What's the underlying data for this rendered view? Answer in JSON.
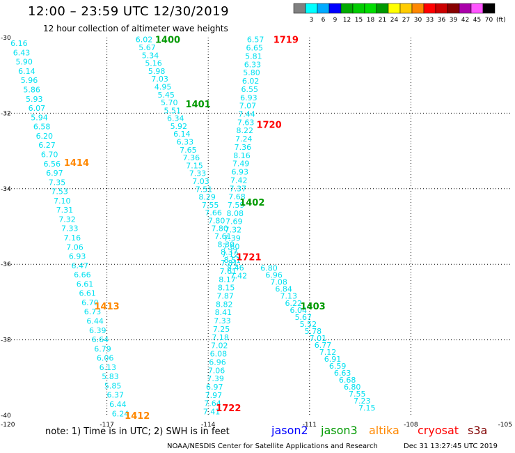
{
  "header": {
    "title": "12:00 – 23:59 UTC 12/30/2019",
    "subtitle": "12 hour collection of altimeter wave heights"
  },
  "color_scale": {
    "unit": "(ft)",
    "bins": [
      {
        "label": "",
        "color": "#808080"
      },
      {
        "label": "3",
        "color": "#00ffff"
      },
      {
        "label": "6",
        "color": "#00aaff"
      },
      {
        "label": "9",
        "color": "#0000ff"
      },
      {
        "label": "12",
        "color": "#00aa00"
      },
      {
        "label": "15",
        "color": "#00cc00"
      },
      {
        "label": "18",
        "color": "#00dd00"
      },
      {
        "label": "21",
        "color": "#009900"
      },
      {
        "label": "24",
        "color": "#ffff00"
      },
      {
        "label": "27",
        "color": "#ffcc00"
      },
      {
        "label": "30",
        "color": "#ff8800"
      },
      {
        "label": "33",
        "color": "#ff0000"
      },
      {
        "label": "36",
        "color": "#cc0000"
      },
      {
        "label": "39",
        "color": "#880000"
      },
      {
        "label": "42",
        "color": "#aa00aa"
      },
      {
        "label": "45",
        "color": "#ff55ff"
      },
      {
        "label": "70",
        "color": "#000000"
      }
    ]
  },
  "footer": {
    "note": "note:  1) Time is in UTC; 2) SWH is in feet",
    "satellites": [
      {
        "name": "jason2",
        "color": "#0000ff"
      },
      {
        "name": "jason3",
        "color": "#009900"
      },
      {
        "name": "altika",
        "color": "#ff8800"
      },
      {
        "name": "cryosat",
        "color": "#ff0000"
      },
      {
        "name": "s3a",
        "color": "#800000"
      }
    ],
    "credit": "NOAA/NESDIS Center for Satellite Applications and Research",
    "timestamp": "Dec 31 13:27:45 UTC 2019"
  },
  "chart_data": {
    "type": "scatter",
    "xlim": [
      -120,
      -105
    ],
    "ylim": [
      -40,
      -30
    ],
    "x_ticks": [
      "-120",
      "-117",
      "-114",
      "-111",
      "-108",
      "-105"
    ],
    "y_ticks": [
      "-30",
      "-32",
      "-34",
      "-36",
      "-38",
      "-40"
    ],
    "grid": true,
    "point_color": "#00e0f0",
    "tracks": [
      {
        "id": "track-left",
        "lon_start": -119.6,
        "lat_start": -30.15,
        "lon_end": -116.6,
        "lat_end": -39.95,
        "values": [
          "6.16",
          "6.43",
          "5.90",
          "6.14",
          "5.96",
          "5.86",
          "5.93",
          "6.07",
          "5.94",
          "6.58",
          "6.20",
          "6.27",
          "6.70",
          "6.56",
          "6.97",
          "7.35",
          "7.53",
          "7.10",
          "7.31",
          "7.32",
          "7.33",
          "7.16",
          "7.06",
          "6.93",
          "6.47",
          "6.66",
          "6.61",
          "6.61",
          "6.70",
          "6.73",
          "6.44",
          "6.39",
          "6.64",
          "6.79",
          "6.06",
          "6.13",
          "5.83",
          "5.85",
          "6.37",
          "6.44",
          "6.24"
        ]
      },
      {
        "id": "track-1400",
        "lon_start": -115.9,
        "lat_start": -30.05,
        "lon_end": -113.1,
        "lat_end": -36.3,
        "values": [
          "6.02",
          "5.67",
          "5.34",
          "5.16",
          "5.98",
          "7.03",
          "4.95",
          "5.45",
          "5.70",
          "5.51",
          "6.34",
          "5.92",
          "6.14",
          "6.33",
          "7.65",
          "7.36",
          "7.15",
          "7.33",
          "7.03",
          "7.51",
          "8.29",
          "7.55",
          "7.66",
          "7.80",
          "7.80",
          "7.61",
          "8.30",
          "8.37",
          "8.51",
          "8.46",
          "7.42"
        ]
      },
      {
        "id": "track-1719",
        "lon_start": -112.6,
        "lat_start": -30.05,
        "lon_end": -113.9,
        "lat_end": -39.9,
        "values": [
          "6.57",
          "6.65",
          "5.81",
          "6.33",
          "5.80",
          "6.02",
          "6.55",
          "6.93",
          "7.07",
          "7.44",
          "7.63",
          "8.22",
          "7.24",
          "7.36",
          "8.16",
          "7.49",
          "6.93",
          "7.42",
          "7.37",
          "7.68",
          "7.59",
          "8.08",
          "7.69",
          "7.32",
          "7.39",
          "7.60",
          "7.12",
          "7.81",
          "7.61",
          "8.17",
          "8.15",
          "7.87",
          "8.82",
          "8.41",
          "7.33",
          "7.25",
          "7.18",
          "7.02",
          "6.08",
          "6.96",
          "7.06",
          "7.39",
          "6.97",
          "7.97",
          "7.64",
          "7.41"
        ]
      },
      {
        "id": "track-1402",
        "lon_start": -112.2,
        "lat_start": -36.1,
        "lon_end": -109.3,
        "lat_end": -39.8,
        "values": [
          "6.80",
          "6.96",
          "7.08",
          "6.84",
          "7.13",
          "6.22",
          "6.04",
          "5.67",
          "5.52",
          "5.78",
          "7.01",
          "6.77",
          "7.12",
          "6.91",
          "6.59",
          "6.63",
          "6.68",
          "6.80",
          "7.55",
          "7.23",
          "7.15"
        ]
      }
    ],
    "pass_labels": [
      {
        "text": "1400",
        "color": "#009900",
        "lon": -115.2,
        "lat": -30.05
      },
      {
        "text": "1401",
        "color": "#009900",
        "lon": -114.3,
        "lat": -31.75
      },
      {
        "text": "1402",
        "color": "#009900",
        "lon": -112.7,
        "lat": -34.35
      },
      {
        "text": "1403",
        "color": "#009900",
        "lon": -110.9,
        "lat": -37.1
      },
      {
        "text": "1414",
        "color": "#ff8800",
        "lon": -117.9,
        "lat": -33.3
      },
      {
        "text": "1413",
        "color": "#ff8800",
        "lon": -117.0,
        "lat": -37.1
      },
      {
        "text": "1412",
        "color": "#ff8800",
        "lon": -116.1,
        "lat": -40.0
      },
      {
        "text": "1719",
        "color": "#ff0000",
        "lon": -111.7,
        "lat": -30.05
      },
      {
        "text": "1720",
        "color": "#ff0000",
        "lon": -112.2,
        "lat": -32.3
      },
      {
        "text": "1721",
        "color": "#ff0000",
        "lon": -112.8,
        "lat": -35.8
      },
      {
        "text": "1722",
        "color": "#ff0000",
        "lon": -113.4,
        "lat": -39.8
      }
    ]
  }
}
